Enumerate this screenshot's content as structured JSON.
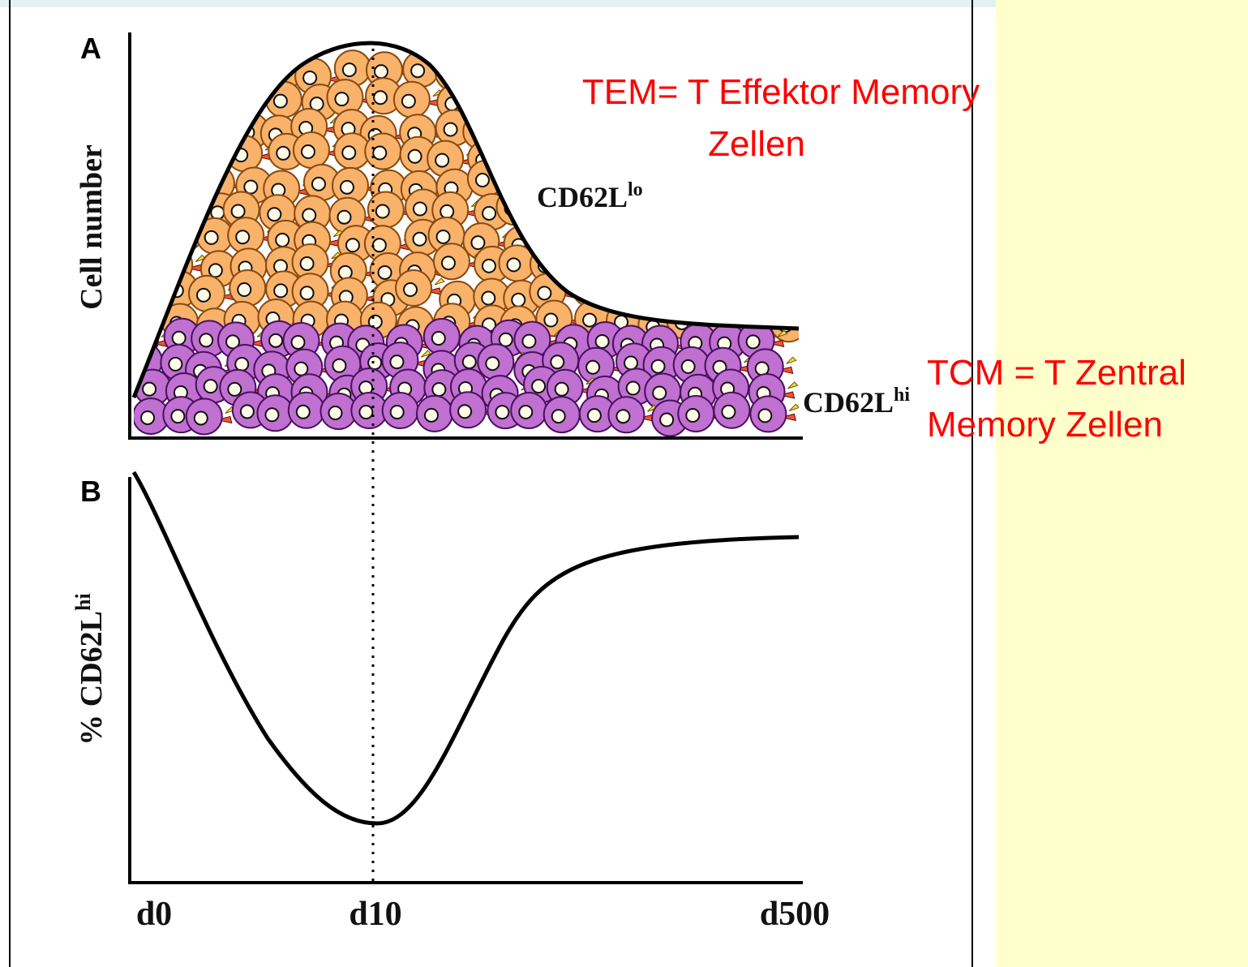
{
  "panel_a": {
    "letter": "A",
    "y_label": "Cell number",
    "label_lo": {
      "base": "CD62L",
      "sup": "lo"
    },
    "label_hi": {
      "base": "CD62L",
      "sup": "hi"
    }
  },
  "panel_b": {
    "letter": "B",
    "y_label": {
      "prefix": "% CD62L",
      "sup": "hi"
    }
  },
  "x_labels": [
    "d0",
    "d10",
    "d500"
  ],
  "annotations": {
    "tem": [
      "TEM= T Effektor Memory",
      "Zellen"
    ],
    "tcm": [
      "TCM = T Zentral",
      "Memory Zellen"
    ]
  }
}
